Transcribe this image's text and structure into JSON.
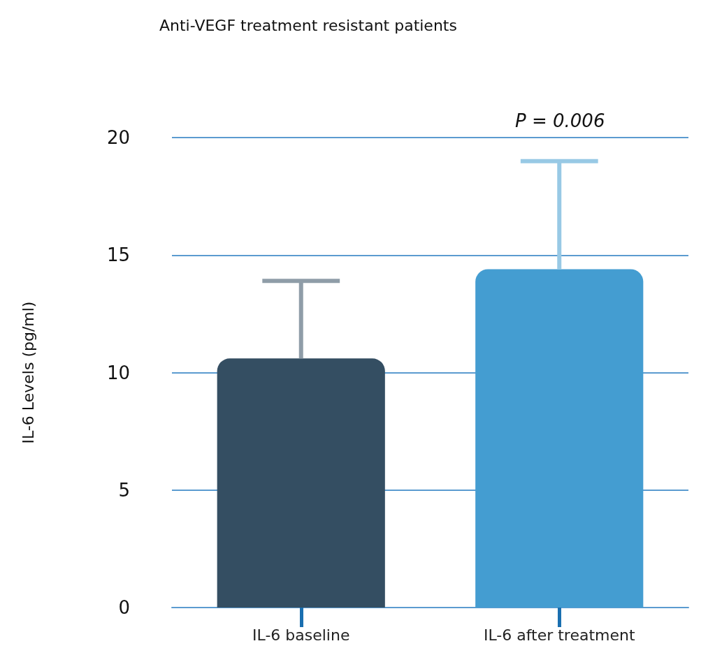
{
  "chart_data": {
    "type": "bar",
    "title": "Anti-VEGF treatment resistant patients",
    "ylabel": "IL-6 Levels (pg/ml)",
    "categories": [
      "IL-6 baseline",
      "IL-6 after treatment"
    ],
    "values": [
      10.6,
      14.4
    ],
    "colors": [
      "#344e62",
      "#449dd1"
    ],
    "errors": [
      [
        10.6,
        13.9
      ],
      [
        14.4,
        19.0
      ]
    ],
    "ylim": [
      0,
      20
    ],
    "yticks": [
      0,
      5,
      10,
      15,
      20
    ],
    "grid": "y",
    "annotations": [
      "P = 0.006"
    ]
  }
}
